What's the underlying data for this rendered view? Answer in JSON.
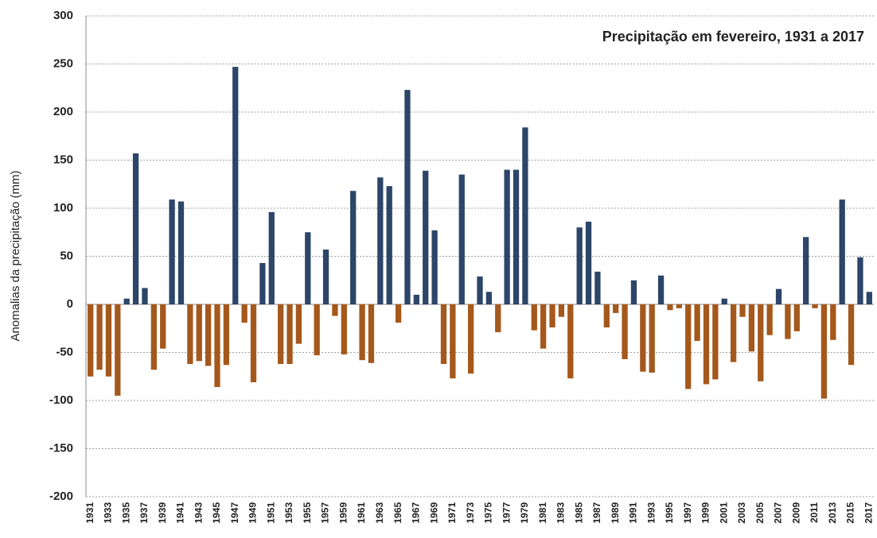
{
  "chart_data": {
    "type": "bar",
    "title": "Precipitação em fevereiro, 1931 a 2017",
    "y_label": "Anomalias da precipitação (mm)",
    "categories": [
      "1931",
      null,
      "1933",
      null,
      "1935",
      null,
      "1937",
      null,
      "1939",
      null,
      "1941",
      null,
      "1943",
      null,
      "1945",
      null,
      "1947",
      null,
      "1949",
      null,
      "1951",
      null,
      "1953",
      null,
      "1955",
      null,
      "1957",
      null,
      "1959",
      null,
      "1961",
      null,
      "1963",
      null,
      "1965",
      null,
      "1967",
      null,
      "1969",
      null,
      "1971",
      null,
      "1973",
      null,
      "1975",
      null,
      "1977",
      null,
      "1979",
      null,
      "1981",
      null,
      "1983",
      null,
      "1985",
      null,
      "1987",
      null,
      "1989",
      null,
      "1991",
      null,
      "1993",
      null,
      "1995",
      null,
      "1997",
      null,
      "1999",
      null,
      "2001",
      null,
      "2003",
      null,
      "2005",
      null,
      "2007",
      null,
      "2009",
      null,
      "2011",
      null,
      "2013",
      null,
      "2015",
      null,
      "2017"
    ],
    "values": [
      -75,
      -68,
      -75,
      -95,
      6,
      157,
      17,
      -68,
      -46,
      109,
      107,
      -62,
      -59,
      -64,
      -86,
      -63,
      247,
      -19,
      -81,
      43,
      96,
      -62,
      -62,
      -41,
      75,
      -53,
      57,
      -12,
      -52,
      118,
      -58,
      -61,
      132,
      123,
      -19,
      223,
      10,
      139,
      77,
      -62,
      -77,
      135,
      -72,
      29,
      13,
      -29,
      140,
      140,
      184,
      -27,
      -46,
      -24,
      -13,
      -77,
      80,
      86,
      34,
      -24,
      -9,
      -57,
      25,
      -70,
      -71,
      30,
      -6,
      -4,
      -88,
      -38,
      -83,
      -78,
      6,
      -60,
      -13,
      -49,
      -80,
      -32,
      16,
      -36,
      -28,
      70,
      -4,
      -98,
      -37,
      109,
      -63,
      49,
      13
    ],
    "color": "#2c4568",
    "negative_color": "#a5581c",
    "ylim": [
      -200,
      300
    ],
    "yticks": [
      -200,
      -150,
      -100,
      -50,
      0,
      50,
      100,
      150,
      200,
      250,
      300
    ],
    "grid": true
  }
}
